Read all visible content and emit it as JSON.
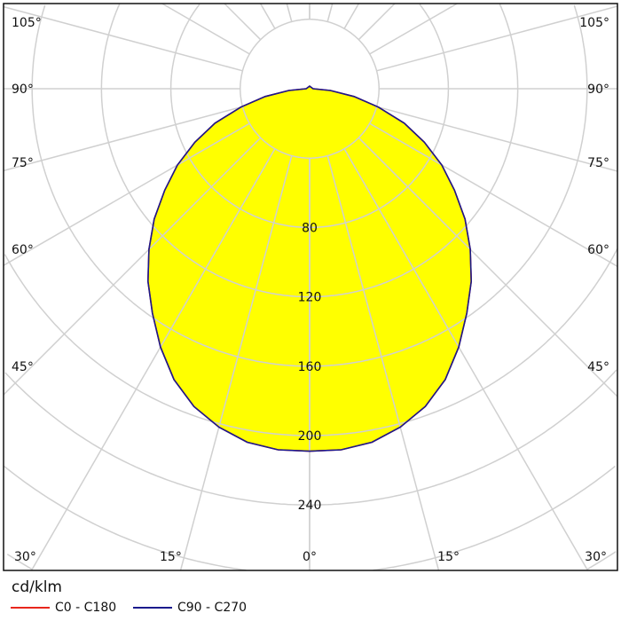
{
  "chart_data": {
    "type": "polar",
    "unit_label": "cd/klm",
    "radial_ticks": [
      40,
      80,
      120,
      160,
      200,
      240,
      280,
      320,
      360
    ],
    "radial_tick_labels": [
      "80",
      "120",
      "160",
      "200",
      "240"
    ],
    "angle_labels_left": [
      "105°",
      "90°",
      "75°",
      "60°",
      "45°",
      "30°",
      "15°"
    ],
    "angle_labels_right": [
      "105°",
      "90°",
      "75°",
      "60°",
      "45°",
      "30°",
      "15°"
    ],
    "angle_label_zero": "0°",
    "grid": true,
    "legend_placement": "bottom-left",
    "angles": [
      0,
      5,
      10,
      15,
      20,
      25,
      30,
      35,
      40,
      45,
      50,
      55,
      60,
      65,
      70,
      75,
      80,
      85,
      90,
      180
    ],
    "series": [
      {
        "name": "C0 - C180",
        "color": "#e8261c",
        "values": [
          209,
          209,
          207,
          202,
          195,
          185,
          172,
          158,
          145,
          131,
          117,
          102,
          88,
          73,
          58,
          41,
          26,
          12,
          2,
          1.5
        ]
      },
      {
        "name": "C90 - C270",
        "color": "#1a1a8c",
        "values": [
          209,
          209,
          207,
          202,
          195,
          185,
          172,
          158,
          145,
          131,
          117,
          102,
          88,
          73,
          58,
          41,
          26,
          12,
          2,
          1.5
        ]
      }
    ],
    "fill_color": "#ffff00",
    "grid_color": "#d0d0d0"
  }
}
